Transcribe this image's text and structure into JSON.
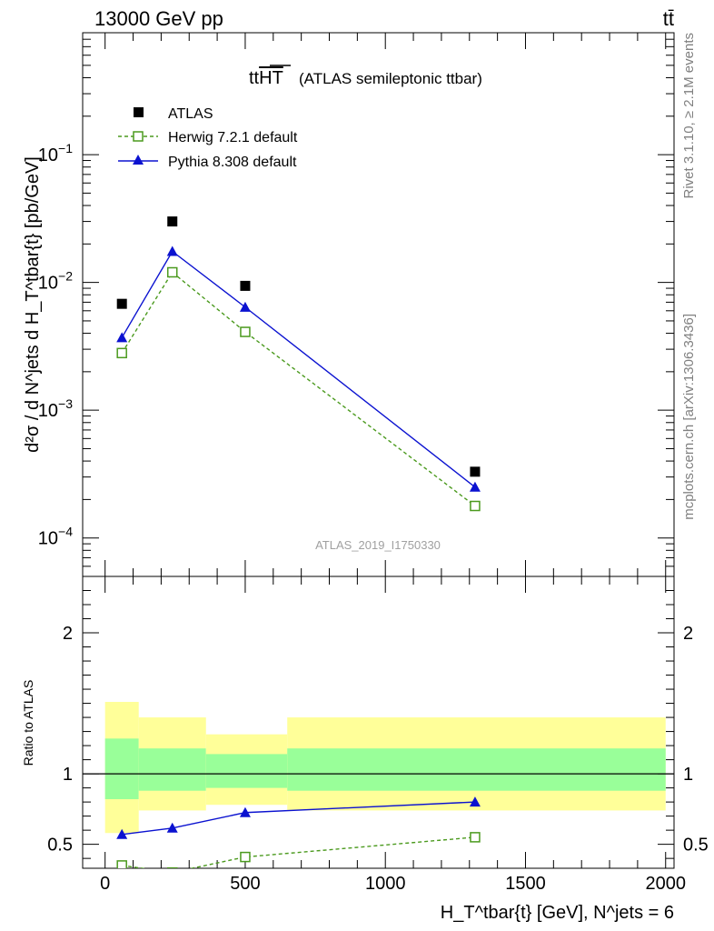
{
  "header": {
    "energy_label": "13000 GeV pp",
    "process_label": "tt̄",
    "plot_title": "tt",
    "plot_title_overline": "HT",
    "plot_subtitle": "(ATLAS semileptonic ttbar)"
  },
  "side": {
    "rivet_text": "Rivet 3.1.10, ≥ 2.1M events",
    "mcplots_text": "mcplots.cern.ch [arXiv:1306.3436]"
  },
  "analysis_label": "ATLAS_2019_I1750330",
  "main_ylabel": "d²σ / d N^jets d H_T^tbar{t} [pb/GeV]",
  "ratio_ylabel": "Ratio to ATLAS",
  "xlabel": "H_T^tbar{t} [GeV], N^jets = 6",
  "colors": {
    "data": "#000000",
    "herwig": "#4b9a1e",
    "pythia": "#0b12d0",
    "band_inner": "#99ff99",
    "band_outer": "#ffff99"
  },
  "chart_data": [
    {
      "type": "scatter",
      "scale": "log",
      "xlim": [
        -80,
        2030
      ],
      "ylim": [
        5e-05,
        0.9
      ],
      "y_ticks": [
        "10^-1",
        "10^-2",
        "10^-3",
        "10^-4"
      ],
      "legend_position": "top-left",
      "series": [
        {
          "name": "ATLAS",
          "style": "square",
          "x": [
            60,
            240,
            500,
            1320
          ],
          "y": [
            0.0068,
            0.03,
            0.0094,
            0.00033
          ]
        },
        {
          "name": "Herwig 7.2.1 default",
          "style": "open-square-dashed",
          "x": [
            60,
            240,
            500,
            1320
          ],
          "y": [
            0.0028,
            0.012,
            0.0041,
            0.000178
          ]
        },
        {
          "name": "Pythia 8.308 default",
          "style": "triangle-solid",
          "x": [
            60,
            240,
            500,
            1320
          ],
          "y": [
            0.0037,
            0.0175,
            0.0064,
            0.00025
          ]
        }
      ]
    },
    {
      "type": "line",
      "xlim": [
        -80,
        2030
      ],
      "ylim": [
        0.33,
        2.4
      ],
      "x_ticks": [
        "0",
        "500",
        "1000",
        "1500",
        "2000"
      ],
      "y_ticks": [
        "0.5",
        "1",
        "2"
      ],
      "bands": [
        {
          "x0": 0,
          "x1": 120,
          "inner": [
            0.82,
            1.25
          ],
          "outer": [
            0.58,
            1.51
          ]
        },
        {
          "x0": 120,
          "x1": 360,
          "inner": [
            0.88,
            1.18
          ],
          "outer": [
            0.74,
            1.4
          ]
        },
        {
          "x0": 360,
          "x1": 650,
          "inner": [
            0.9,
            1.14
          ],
          "outer": [
            0.78,
            1.28
          ]
        },
        {
          "x0": 650,
          "x1": 2000,
          "inner": [
            0.88,
            1.18
          ],
          "outer": [
            0.74,
            1.4
          ]
        }
      ],
      "series": [
        {
          "name": "Herwig 7.2.1 default",
          "x": [
            60,
            240,
            500,
            1320
          ],
          "y": [
            0.35,
            0.3,
            0.41,
            0.55
          ]
        },
        {
          "name": "Pythia 8.308 default",
          "x": [
            60,
            240,
            500,
            1320
          ],
          "y": [
            0.57,
            0.615,
            0.725,
            0.8
          ]
        }
      ]
    }
  ]
}
